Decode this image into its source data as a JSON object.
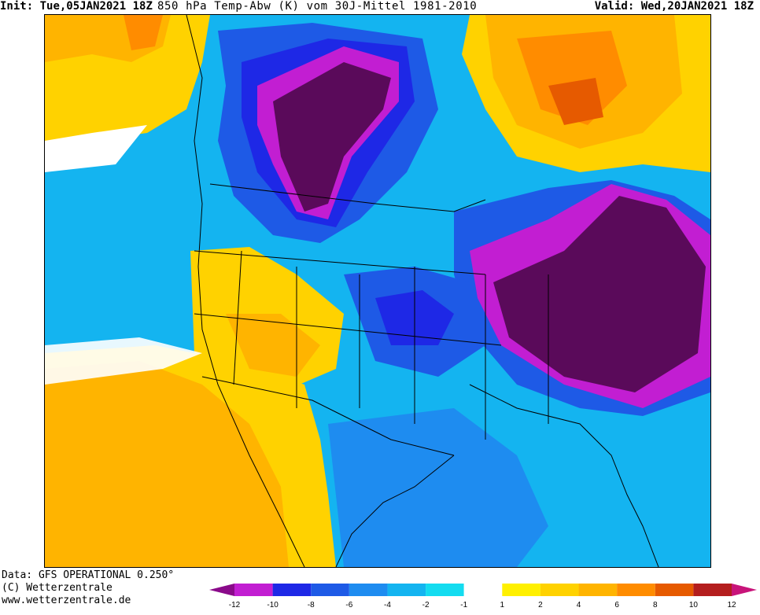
{
  "header": {
    "init_label": "Init:",
    "init_value": "Tue,05JAN2021 18Z",
    "title": "850 hPa Temp-Abw (K) vom 30J-Mittel 1981-2010",
    "valid_label": "Valid:",
    "valid_value": "Wed,20JAN2021 18Z"
  },
  "footer": {
    "data_line": "Data: GFS OPERATIONAL 0.250°",
    "copyright_line": "(C) Wetterzentrale",
    "url_line": "www.wetterzentrale.de"
  },
  "colorbar": {
    "ticks": [
      "-12",
      "-10",
      "-8",
      "-6",
      "-4",
      "-2",
      "-1",
      "1",
      "2",
      "4",
      "6",
      "8",
      "10",
      "12"
    ],
    "colors": {
      "lt_minus12": "#8a0a8a",
      "minus12_minus10": "#c21ed2",
      "minus10_minus8": "#1e28e6",
      "minus8_minus6": "#1e5ae6",
      "minus6_minus4": "#1e8cf0",
      "minus4_minus2": "#14b4f0",
      "minus2_minus1": "#14dcf0",
      "minus1_1": "#ffffff",
      "1_2": "#fff000",
      "2_4": "#ffd200",
      "4_6": "#ffb400",
      "6_8": "#ff8c00",
      "8_10": "#e65a00",
      "10_12": "#b41e1e",
      "gt_12": "#c8147a"
    }
  },
  "map": {
    "region": "North America",
    "field": "850 hPa temperature anomaly",
    "palette": {
      "deep_purple": "#5a0a5a",
      "magenta": "#c21ed2",
      "blue": "#1e28e6",
      "mid_blue": "#1e5ae6",
      "light_blue": "#1e8cf0",
      "sky": "#14b4f0",
      "cyan": "#14dcf0",
      "white": "#ffffff",
      "yellow": "#fff000",
      "gold": "#ffd200",
      "light_orange": "#ffb400",
      "orange": "#ff8c00",
      "dark_orange": "#e65a00"
    }
  }
}
